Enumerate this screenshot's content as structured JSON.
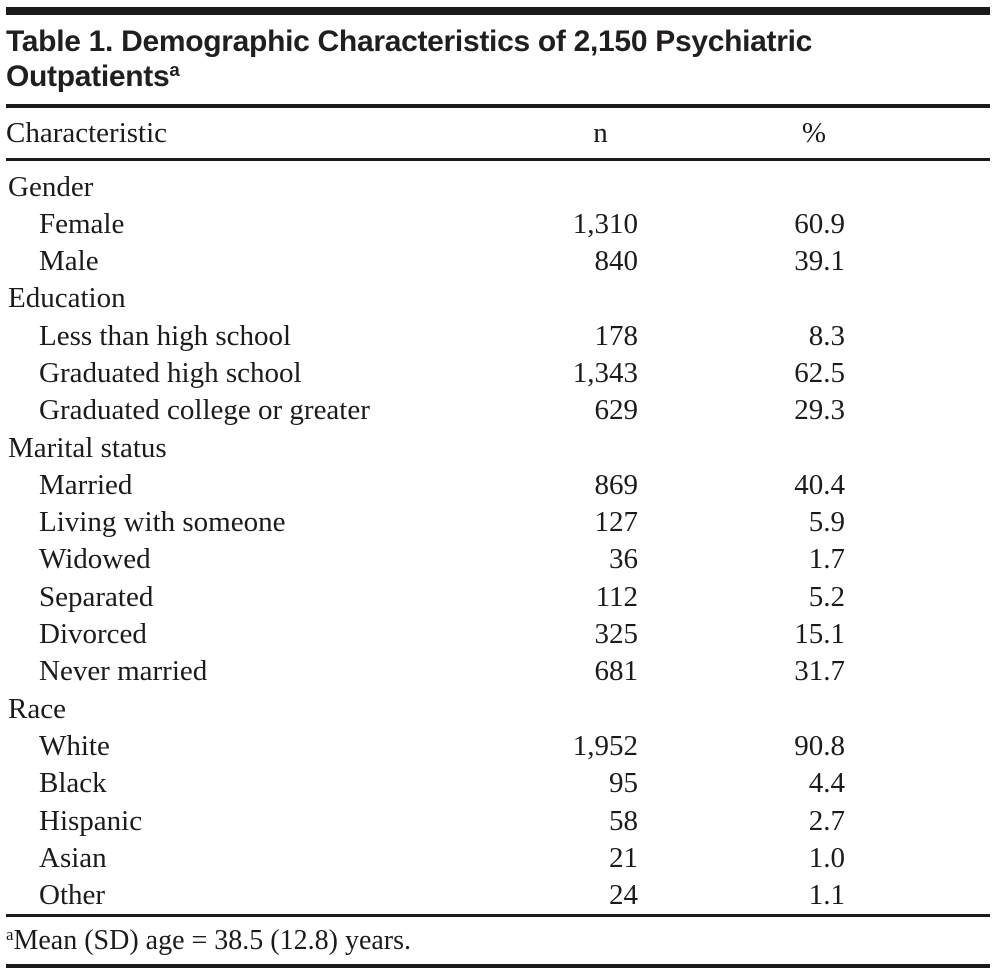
{
  "table": {
    "title": "Table 1. Demographic Characteristics of 2,150 Psychiatric Outpatients",
    "title_sup": "a",
    "columns": {
      "characteristic": "Characteristic",
      "n": "n",
      "pct": "%"
    },
    "sections": [
      {
        "label": "Gender",
        "rows": [
          {
            "label": "Female",
            "n": "1,310",
            "pct": "60.9"
          },
          {
            "label": "Male",
            "n": "840",
            "pct": "39.1"
          }
        ]
      },
      {
        "label": "Education",
        "rows": [
          {
            "label": "Less than high school",
            "n": "178",
            "pct": "8.3"
          },
          {
            "label": "Graduated high school",
            "n": "1,343",
            "pct": "62.5"
          },
          {
            "label": "Graduated college or greater",
            "n": "629",
            "pct": "29.3"
          }
        ]
      },
      {
        "label": "Marital status",
        "rows": [
          {
            "label": "Married",
            "n": "869",
            "pct": "40.4"
          },
          {
            "label": "Living with someone",
            "n": "127",
            "pct": "5.9"
          },
          {
            "label": "Widowed",
            "n": "36",
            "pct": "1.7"
          },
          {
            "label": "Separated",
            "n": "112",
            "pct": "5.2"
          },
          {
            "label": "Divorced",
            "n": "325",
            "pct": "15.1"
          },
          {
            "label": "Never married",
            "n": "681",
            "pct": "31.7"
          }
        ]
      },
      {
        "label": "Race",
        "rows": [
          {
            "label": "White",
            "n": "1,952",
            "pct": "90.8"
          },
          {
            "label": "Black",
            "n": "95",
            "pct": "4.4"
          },
          {
            "label": "Hispanic",
            "n": "58",
            "pct": "2.7"
          },
          {
            "label": "Asian",
            "n": "21",
            "pct": "1.0"
          },
          {
            "label": "Other",
            "n": "24",
            "pct": "1.1"
          }
        ]
      }
    ],
    "footnote_sup": "a",
    "footnote": "Mean (SD) age = 38.5 (12.8) years."
  }
}
